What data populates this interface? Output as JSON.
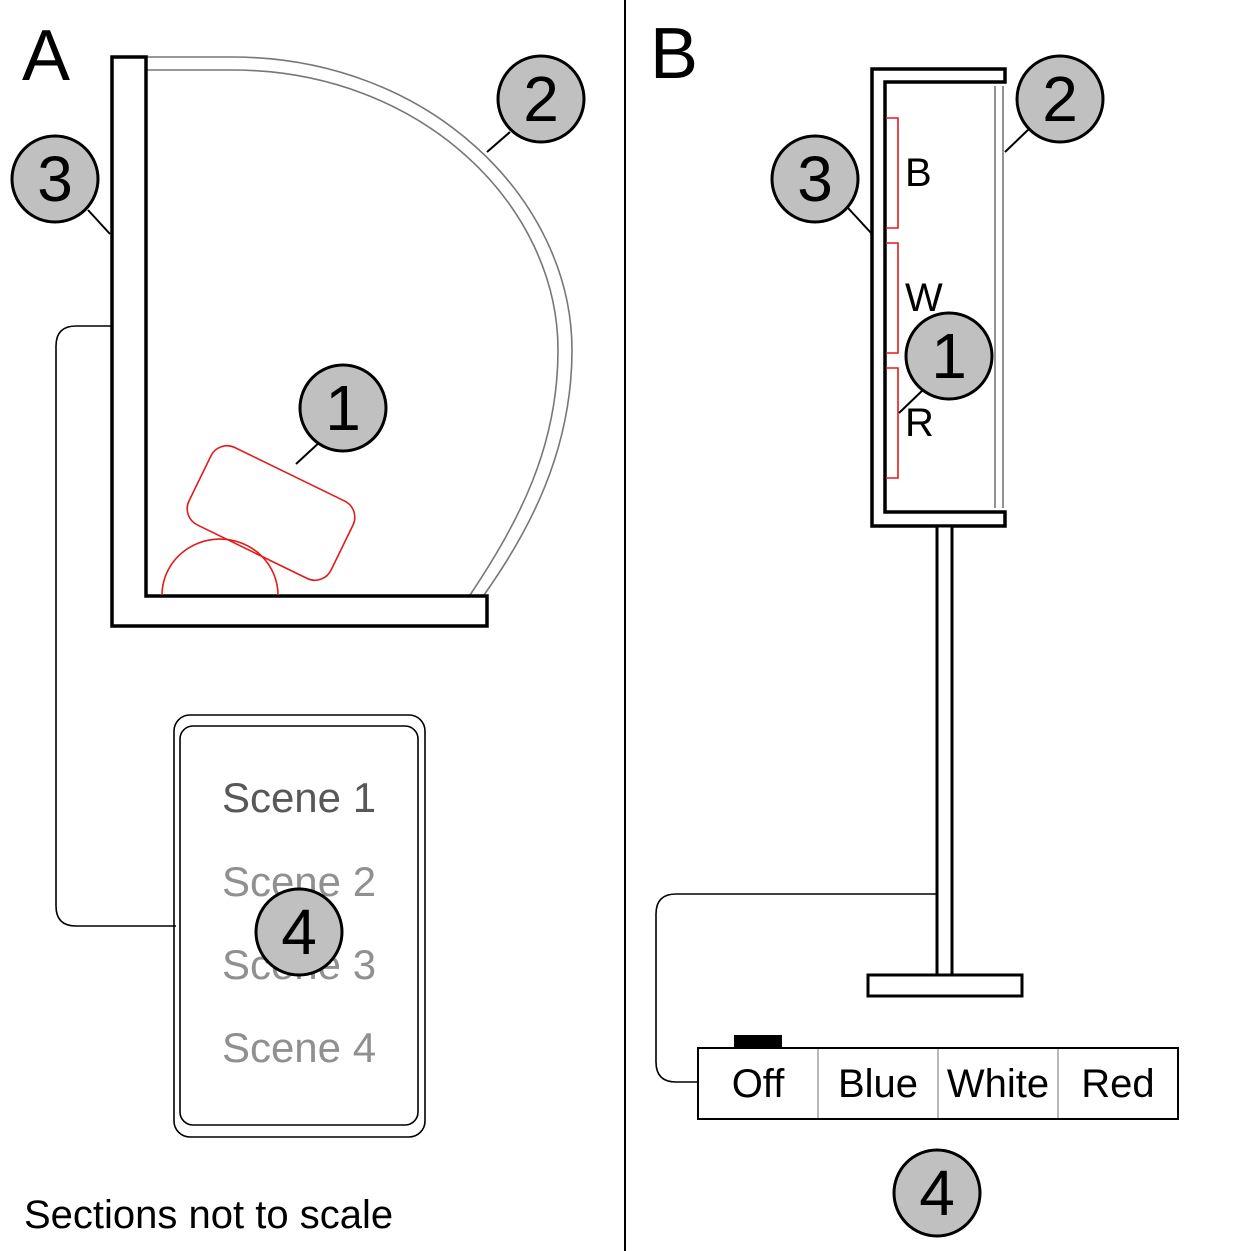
{
  "panel_a": {
    "label": "A",
    "callouts": [
      {
        "number": "1"
      },
      {
        "number": "2"
      },
      {
        "number": "3"
      },
      {
        "number": "4"
      }
    ],
    "remote_scenes": [
      "Scene 1",
      "Scene 2",
      "Scene 3",
      "Scene 4"
    ],
    "note": "Sections not to scale"
  },
  "panel_b": {
    "label": "B",
    "callouts": [
      {
        "number": "1"
      },
      {
        "number": "2"
      },
      {
        "number": "3"
      },
      {
        "number": "4"
      }
    ],
    "light_labels": [
      "B",
      "W",
      "R"
    ],
    "switch_buttons": [
      "Off",
      "Blue",
      "White",
      "Red"
    ],
    "selected_button": "Off"
  },
  "colors": {
    "light_strip": "#e31b1b",
    "callout_fill": "#c0c0c0",
    "glass": "#777777"
  }
}
